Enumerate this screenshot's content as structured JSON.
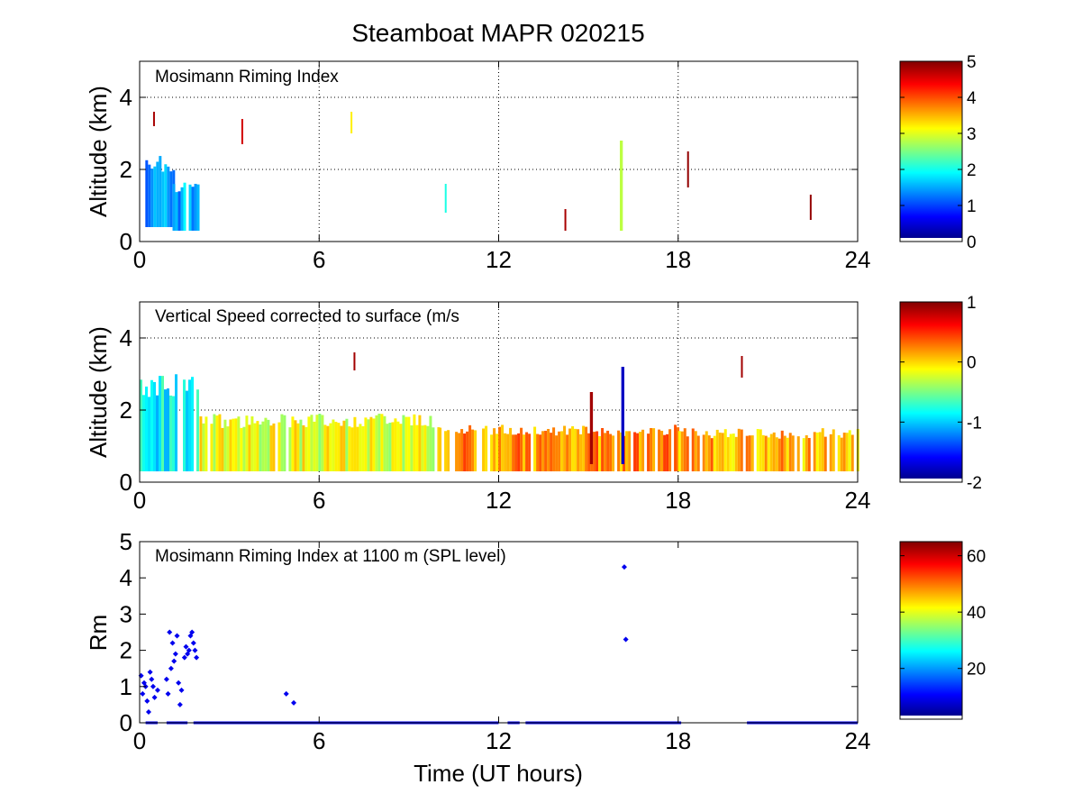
{
  "figure": {
    "title": "Steamboat MAPR 020215",
    "xlabel": "Time (UT hours)"
  },
  "chart_data": [
    {
      "type": "heatmap",
      "panel_label": "Mosimann Riming Index",
      "xlabel": "",
      "ylabel": "Altitude (km)",
      "xlim": [
        0,
        24
      ],
      "ylim": [
        0,
        5
      ],
      "xticks": [
        0,
        6,
        12,
        18,
        24
      ],
      "yticks": [
        0,
        2,
        4
      ],
      "grid": true,
      "colorbar": {
        "range": [
          0,
          5
        ],
        "ticks": [
          0,
          1,
          2,
          3,
          4,
          5
        ],
        "colormap": "jet"
      },
      "features": [
        {
          "t0": 0.1,
          "t1": 1.1,
          "z0": 0.4,
          "z1": 2.4,
          "value": 1.3
        },
        {
          "t0": 1.1,
          "t1": 2.0,
          "z0": 0.3,
          "z1": 1.7,
          "value": 1.5
        },
        {
          "t0": 0.45,
          "t1": 0.5,
          "z0": 3.2,
          "z1": 3.6,
          "value": 4.8
        },
        {
          "t0": 3.4,
          "t1": 3.45,
          "z0": 2.7,
          "z1": 3.4,
          "value": 4.6
        },
        {
          "t0": 7.05,
          "t1": 7.1,
          "z0": 3.0,
          "z1": 3.6,
          "value": 3.2
        },
        {
          "t0": 10.2,
          "t1": 10.25,
          "z0": 0.8,
          "z1": 1.6,
          "value": 2.0
        },
        {
          "t0": 14.2,
          "t1": 14.25,
          "z0": 0.3,
          "z1": 0.9,
          "value": 4.8
        },
        {
          "t0": 16.05,
          "t1": 16.15,
          "z0": 0.3,
          "z1": 2.8,
          "value": 2.8
        },
        {
          "t0": 18.3,
          "t1": 18.35,
          "z0": 1.5,
          "z1": 2.5,
          "value": 4.9
        },
        {
          "t0": 22.4,
          "t1": 22.45,
          "z0": 0.6,
          "z1": 1.3,
          "value": 4.9
        }
      ]
    },
    {
      "type": "heatmap",
      "panel_label": "Vertical Speed corrected to surface (m/s",
      "xlabel": "",
      "ylabel": "Altitude (km)",
      "xlim": [
        0,
        24
      ],
      "ylim": [
        0,
        5
      ],
      "xticks": [
        0,
        6,
        12,
        18,
        24
      ],
      "yticks": [
        0,
        2,
        4
      ],
      "grid": true,
      "colorbar": {
        "range": [
          -2,
          1
        ],
        "ticks": [
          -2,
          -1,
          0,
          1
        ],
        "colormap": "jet"
      },
      "features": [
        {
          "t0": 0.0,
          "t1": 2.0,
          "z0": 0.3,
          "z1": 3.0,
          "value": -0.9
        },
        {
          "t0": 2.0,
          "t1": 10.0,
          "z0": 0.3,
          "z1": 1.9,
          "value": -0.2
        },
        {
          "t0": 10.0,
          "t1": 18.0,
          "z0": 0.3,
          "z1": 1.6,
          "value": 0.2
        },
        {
          "t0": 18.0,
          "t1": 24.0,
          "z0": 0.3,
          "z1": 1.5,
          "value": 0.1
        },
        {
          "t0": 15.05,
          "t1": 15.15,
          "z0": 0.5,
          "z1": 2.5,
          "value": 0.9
        },
        {
          "t0": 16.1,
          "t1": 16.2,
          "z0": 0.5,
          "z1": 3.2,
          "value": -1.8
        },
        {
          "t0": 7.15,
          "t1": 7.2,
          "z0": 3.1,
          "z1": 3.6,
          "value": 0.9
        },
        {
          "t0": 20.1,
          "t1": 20.15,
          "z0": 2.9,
          "z1": 3.5,
          "value": 0.9
        }
      ]
    },
    {
      "type": "scatter",
      "panel_label": "Mosimann Riming Index at 1100 m (SPL level)",
      "xlabel": "Time (UT hours)",
      "ylabel": "Rm",
      "xlim": [
        0,
        24
      ],
      "ylim": [
        0,
        5
      ],
      "xticks": [
        0,
        6,
        12,
        18,
        24
      ],
      "yticks": [
        0,
        1,
        2,
        3,
        4,
        5
      ],
      "grid": false,
      "colorbar": {
        "range": [
          2,
          65
        ],
        "ticks": [
          20,
          40,
          60
        ],
        "colormap": "jet"
      },
      "series": [
        {
          "name": "Rm",
          "color": "#0000ee",
          "x": [
            0.05,
            0.1,
            0.15,
            0.2,
            0.25,
            0.3,
            0.35,
            0.4,
            0.45,
            0.5,
            0.6,
            0.9,
            0.95,
            1.0,
            1.05,
            1.1,
            1.15,
            1.2,
            1.25,
            1.3,
            1.35,
            1.4,
            1.5,
            1.55,
            1.6,
            1.65,
            1.7,
            1.75,
            1.8,
            1.85,
            1.9,
            4.9,
            5.15,
            16.2,
            16.25
          ],
          "y": [
            1.3,
            0.8,
            1.1,
            1.0,
            0.6,
            0.3,
            1.4,
            1.2,
            1.0,
            0.7,
            0.9,
            1.2,
            0.8,
            2.5,
            1.5,
            2.2,
            1.7,
            1.9,
            2.4,
            1.1,
            0.5,
            0.9,
            1.8,
            2.1,
            1.9,
            2.0,
            2.4,
            2.5,
            2.2,
            2.0,
            1.8,
            0.8,
            0.55,
            4.3,
            2.3
          ]
        },
        {
          "name": "Rm = 0",
          "color": "#0000ee",
          "segments": [
            [
              0.2,
              0.6
            ],
            [
              0.9,
              1.6
            ],
            [
              1.8,
              12.0
            ],
            [
              12.3,
              12.7
            ],
            [
              12.9,
              18.1
            ],
            [
              20.3,
              24.0
            ]
          ],
          "y": 0
        }
      ]
    }
  ]
}
